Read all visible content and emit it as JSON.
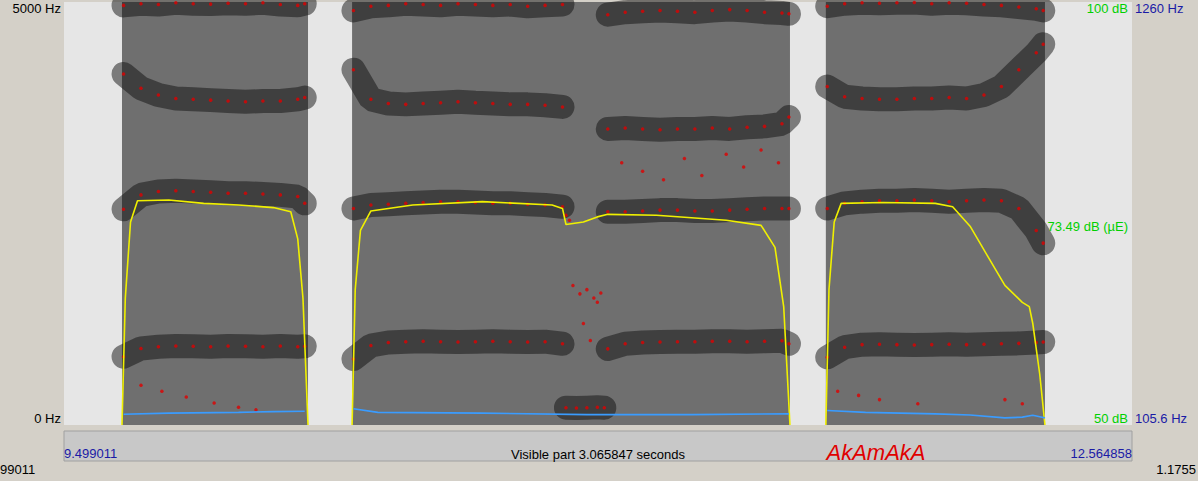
{
  "chart_data": {
    "type": "spectrogram",
    "title": "AkAmAkA",
    "annotations": {
      "visible_part": "Visible part 3.065847 seconds",
      "left_edge": "99011",
      "right_edge": "1.1755",
      "cursor": {
        "text": "73.49 dB (µE)",
        "value": 73.49,
        "axis": "y2"
      }
    },
    "xlim": [
      9.499011,
      12.564858
    ],
    "xticks": [
      9.499011,
      12.564858
    ],
    "ylim": [
      0,
      5000
    ],
    "yticks": [
      {
        "value": 0,
        "label": "0 Hz"
      },
      {
        "value": 5000,
        "label": "5000 Hz"
      }
    ],
    "y2lim": [
      50,
      100
    ],
    "y2ticks": [
      {
        "value": 50,
        "label": "50 dB"
      },
      {
        "value": 100,
        "label": "100 dB"
      }
    ],
    "y3lim": [
      105.6,
      1260
    ],
    "y3ticks": [
      {
        "value": 105.6,
        "label": "105.6 Hz"
      },
      {
        "value": 1260,
        "label": "1260 Hz"
      }
    ],
    "grid": false,
    "segments": [
      [
        9.6655,
        10.1995
      ],
      [
        10.326,
        11.583
      ],
      [
        11.686,
        12.315
      ]
    ],
    "series": [
      {
        "type": "scatter",
        "axis": "y",
        "color": "#e00000",
        "marker": "circle",
        "line_style": "band",
        "x": [
          9.67,
          9.72,
          9.77,
          9.82,
          9.87,
          9.92,
          9.97,
          10.02,
          10.07,
          10.12,
          10.17,
          10.19
        ],
        "values": [
          808,
          905,
          925,
          935,
          930,
          925,
          935,
          930,
          925,
          935,
          925,
          930
        ]
      },
      {
        "type": "scatter",
        "axis": "y",
        "color": "#e00000",
        "marker": "circle",
        "line_style": "band",
        "x": [
          9.67,
          9.72,
          9.77,
          9.82,
          9.87,
          9.92,
          9.97,
          10.02,
          10.07,
          10.12,
          10.17,
          10.19
        ],
        "values": [
          2550,
          2720,
          2760,
          2770,
          2760,
          2750,
          2740,
          2740,
          2730,
          2720,
          2700,
          2620
        ]
      },
      {
        "type": "scatter",
        "axis": "y",
        "color": "#e00000",
        "marker": "circle",
        "line_style": "band",
        "x": [
          9.67,
          9.72,
          9.77,
          9.82,
          9.87,
          9.92,
          9.97,
          10.02,
          10.07,
          10.12,
          10.17,
          10.19
        ],
        "values": [
          4150,
          3980,
          3900,
          3860,
          3850,
          3840,
          3830,
          3820,
          3830,
          3830,
          3850,
          3870
        ]
      },
      {
        "type": "scatter",
        "axis": "y",
        "color": "#e00000",
        "marker": "circle",
        "line_style": "band",
        "x": [
          9.67,
          9.72,
          9.77,
          9.82,
          9.87,
          9.92,
          9.97,
          10.02,
          10.07,
          10.12,
          10.17,
          10.19
        ],
        "values": [
          4960,
          4980,
          4970,
          4990,
          4980,
          4975,
          4985,
          4980,
          4990,
          4970,
          4960,
          4980
        ]
      },
      {
        "type": "scatter",
        "axis": "y",
        "color": "#e00000",
        "marker": "circle",
        "x": [
          9.72,
          9.78,
          9.85,
          9.93,
          10.0,
          10.05
        ],
        "values": [
          470,
          400,
          330,
          260,
          210,
          180
        ]
      },
      {
        "type": "scatter",
        "axis": "y",
        "color": "#e00000",
        "marker": "circle",
        "line_style": "band",
        "x": [
          10.33,
          10.38,
          10.43,
          10.48,
          10.53,
          10.58,
          10.63,
          10.68,
          10.73,
          10.78,
          10.83,
          10.88,
          10.93
        ],
        "values": [
          780,
          940,
          975,
          985,
          990,
          985,
          980,
          985,
          990,
          985,
          980,
          985,
          960
        ]
      },
      {
        "type": "scatter",
        "axis": "y",
        "color": "#e00000",
        "marker": "circle",
        "line_style": "band",
        "x": [
          10.33,
          10.38,
          10.43,
          10.48,
          10.53,
          10.58,
          10.63,
          10.68,
          10.73,
          10.78,
          10.83,
          10.88,
          10.93
        ],
        "values": [
          2560,
          2600,
          2610,
          2620,
          2630,
          2640,
          2640,
          2630,
          2620,
          2620,
          2610,
          2600,
          2580
        ]
      },
      {
        "type": "scatter",
        "axis": "y",
        "color": "#e00000",
        "marker": "circle",
        "line_style": "band",
        "x": [
          10.33,
          10.38,
          10.43,
          10.48,
          10.53,
          10.58,
          10.63,
          10.68,
          10.73,
          10.78,
          10.83,
          10.88,
          10.93
        ],
        "values": [
          4200,
          3850,
          3800,
          3790,
          3800,
          3810,
          3820,
          3810,
          3800,
          3790,
          3790,
          3780,
          3760
        ]
      },
      {
        "type": "scatter",
        "axis": "y",
        "color": "#e00000",
        "marker": "circle",
        "line_style": "band",
        "x": [
          10.33,
          10.38,
          10.43,
          10.48,
          10.53,
          10.58,
          10.63,
          10.68,
          10.73,
          10.78,
          10.83,
          10.88,
          10.93
        ],
        "values": [
          4900,
          4950,
          4960,
          4980,
          4970,
          4960,
          4980,
          4970,
          4960,
          4970,
          4950,
          4960,
          4970
        ]
      },
      {
        "type": "scatter",
        "axis": "y",
        "color": "#e00000",
        "marker": "circle",
        "line_style": "band",
        "x": [
          10.94,
          10.97,
          11.0,
          11.03,
          11.05
        ],
        "values": [
          205,
          200,
          205,
          210,
          205
        ]
      },
      {
        "type": "scatter",
        "axis": "y",
        "color": "#e00000",
        "marker": "circle",
        "x": [
          10.94,
          10.95,
          10.96,
          10.98,
          11.0,
          11.02,
          11.03,
          11.04,
          10.99,
          11.01
        ],
        "values": [
          2480,
          2420,
          1650,
          1550,
          1600,
          1500,
          1450,
          1560,
          1200,
          1000
        ]
      },
      {
        "type": "scatter",
        "axis": "y",
        "color": "#e00000",
        "marker": "circle",
        "line_style": "band",
        "x": [
          11.06,
          11.11,
          11.16,
          11.21,
          11.26,
          11.31,
          11.36,
          11.41,
          11.46,
          11.51,
          11.56,
          11.58
        ],
        "values": [
          900,
          960,
          975,
          980,
          985,
          985,
          990,
          990,
          985,
          990,
          995,
          960
        ]
      },
      {
        "type": "scatter",
        "axis": "y",
        "color": "#e00000",
        "marker": "circle",
        "line_style": "band",
        "x": [
          11.06,
          11.11,
          11.16,
          11.21,
          11.26,
          11.31,
          11.36,
          11.41,
          11.46,
          11.51,
          11.56,
          11.58
        ],
        "values": [
          2520,
          2520,
          2530,
          2540,
          2540,
          2530,
          2530,
          2540,
          2550,
          2560,
          2560,
          2560
        ]
      },
      {
        "type": "scatter",
        "axis": "y",
        "color": "#e00000",
        "marker": "circle",
        "line_style": "band",
        "x": [
          11.06,
          11.11,
          11.16,
          11.21,
          11.26,
          11.31,
          11.36,
          11.41,
          11.46,
          11.51,
          11.56,
          11.58
        ],
        "values": [
          3500,
          3510,
          3500,
          3490,
          3500,
          3500,
          3510,
          3500,
          3520,
          3530,
          3560,
          3640
        ]
      },
      {
        "type": "scatter",
        "axis": "y",
        "color": "#e00000",
        "marker": "circle",
        "line_style": "band",
        "x": [
          11.06,
          11.11,
          11.16,
          11.21,
          11.26,
          11.31,
          11.36,
          11.41,
          11.46,
          11.51,
          11.56,
          11.58
        ],
        "values": [
          4850,
          4880,
          4890,
          4900,
          4890,
          4880,
          4900,
          4910,
          4900,
          4880,
          4870,
          4860
        ]
      },
      {
        "type": "scatter",
        "axis": "y",
        "color": "#e00000",
        "marker": "circle",
        "x": [
          11.1,
          11.16,
          11.22,
          11.28,
          11.33,
          11.4,
          11.45,
          11.5,
          11.55
        ],
        "values": [
          3100,
          3000,
          2900,
          3150,
          2950,
          3200,
          3050,
          3250,
          3100
        ]
      },
      {
        "type": "scatter",
        "axis": "y",
        "color": "#e00000",
        "marker": "circle",
        "line_style": "band",
        "x": [
          11.69,
          11.74,
          11.79,
          11.84,
          11.89,
          11.94,
          11.99,
          12.04,
          12.09,
          12.14,
          12.19,
          12.24,
          12.29,
          12.31
        ],
        "values": [
          800,
          920,
          950,
          955,
          950,
          945,
          950,
          955,
          950,
          955,
          960,
          965,
          975,
          980
        ]
      },
      {
        "type": "scatter",
        "axis": "y",
        "color": "#e00000",
        "marker": "circle",
        "line_style": "band",
        "x": [
          11.69,
          11.74,
          11.79,
          11.84,
          11.89,
          11.94,
          11.99,
          12.04,
          12.09,
          12.14,
          12.19,
          12.24,
          12.29,
          12.31
        ],
        "values": [
          2560,
          2620,
          2640,
          2650,
          2650,
          2660,
          2650,
          2640,
          2650,
          2660,
          2650,
          2560,
          2300,
          2150
        ]
      },
      {
        "type": "scatter",
        "axis": "y",
        "color": "#e00000",
        "marker": "circle",
        "line_style": "band",
        "x": [
          11.69,
          11.74,
          11.79,
          11.84,
          11.89,
          11.94,
          11.99,
          12.04,
          12.09,
          12.14,
          12.19,
          12.24,
          12.29,
          12.31
        ],
        "values": [
          4000,
          3880,
          3860,
          3850,
          3850,
          3860,
          3860,
          3870,
          3860,
          3900,
          4000,
          4200,
          4400,
          4500
        ]
      },
      {
        "type": "scatter",
        "axis": "y",
        "color": "#e00000",
        "marker": "circle",
        "line_style": "band",
        "x": [
          11.69,
          11.74,
          11.79,
          11.84,
          11.89,
          11.94,
          11.99,
          12.04,
          12.09,
          12.14,
          12.19,
          12.24,
          12.29,
          12.31
        ],
        "values": [
          4950,
          4980,
          4990,
          4985,
          4990,
          4995,
          4980,
          4990,
          4985,
          4970,
          4960,
          4940,
          4920,
          4900
        ]
      },
      {
        "type": "scatter",
        "axis": "y",
        "color": "#e00000",
        "marker": "circle",
        "x": [
          11.72,
          11.78,
          11.84,
          11.95,
          12.2,
          12.25
        ],
        "values": [
          400,
          350,
          300,
          250,
          300,
          250
        ]
      },
      {
        "type": "line",
        "axis": "y2",
        "color": "#f0f000",
        "x": [
          9.6655,
          9.675,
          9.69,
          9.71,
          9.8,
          9.9,
          10.0,
          10.1,
          10.15,
          10.17,
          10.185,
          10.1995,
          10.26,
          10.326,
          10.335,
          10.35,
          10.38,
          10.5,
          10.7,
          10.9,
          10.93,
          10.94,
          10.99,
          11.03,
          11.06,
          11.2,
          11.4,
          11.5,
          11.54,
          11.565,
          11.583,
          11.63,
          11.686,
          11.695,
          11.71,
          11.73,
          11.85,
          12.0,
          12.05,
          12.1,
          12.15,
          12.2,
          12.25,
          12.27,
          12.28,
          12.3,
          12.315
        ],
        "values": [
          50,
          65,
          74,
          76.5,
          76.6,
          76.2,
          76.0,
          75.7,
          75.2,
          72,
          65,
          50,
          null,
          50,
          66,
          73,
          75.3,
          76.0,
          76.4,
          76.0,
          75.6,
          73.7,
          74.0,
          74.6,
          74.9,
          74.8,
          74.2,
          73.6,
          71,
          64,
          50,
          null,
          50,
          66,
          74,
          76.2,
          76.3,
          76.2,
          75.8,
          73.5,
          70,
          66.5,
          64.5,
          64.0,
          62,
          56,
          50
        ]
      },
      {
        "type": "line",
        "axis": "y3",
        "color": "#3a9cff",
        "x": [
          9.67,
          9.8,
          10.0,
          10.1,
          10.19,
          10.26,
          10.33,
          10.4,
          10.7,
          11.0,
          11.3,
          11.58,
          11.63,
          11.69,
          11.8,
          12.0,
          12.1,
          12.2,
          12.25,
          12.28,
          12.3,
          12.315
        ],
        "values": [
          135,
          138,
          140,
          142,
          143,
          null,
          150,
          140,
          138,
          134,
          134,
          136,
          null,
          145,
          140,
          136,
          133,
          125,
          127,
          132,
          128,
          125
        ]
      }
    ]
  }
}
